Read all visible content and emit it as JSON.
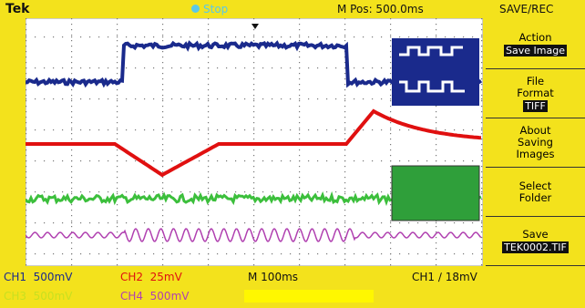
{
  "top_bar": {
    "brand": "Tek",
    "status": "Stop",
    "position": "M Pos: 500.0ms",
    "menu_title": "SAVE/REC"
  },
  "menu": [
    {
      "label_lines": [
        "Action"
      ],
      "value": "Save Image"
    },
    {
      "label_lines": [
        "File",
        "Format"
      ],
      "value": "TIFF"
    },
    {
      "label_lines": [
        "About",
        "Saving",
        "Images"
      ]
    },
    {
      "label_lines": [
        "Select",
        "Folder"
      ]
    },
    {
      "label_lines": [
        "Save"
      ],
      "value": "TEK0002.TIF"
    }
  ],
  "status_bar": {
    "ch1": "CH1  500mV",
    "ch2": "CH2  25mV",
    "timebase": "M 100ms",
    "trigger": "CH1 ∕ 18mV",
    "ch3": "CH3  500mV",
    "ch4": "CH4  500mV"
  }
}
